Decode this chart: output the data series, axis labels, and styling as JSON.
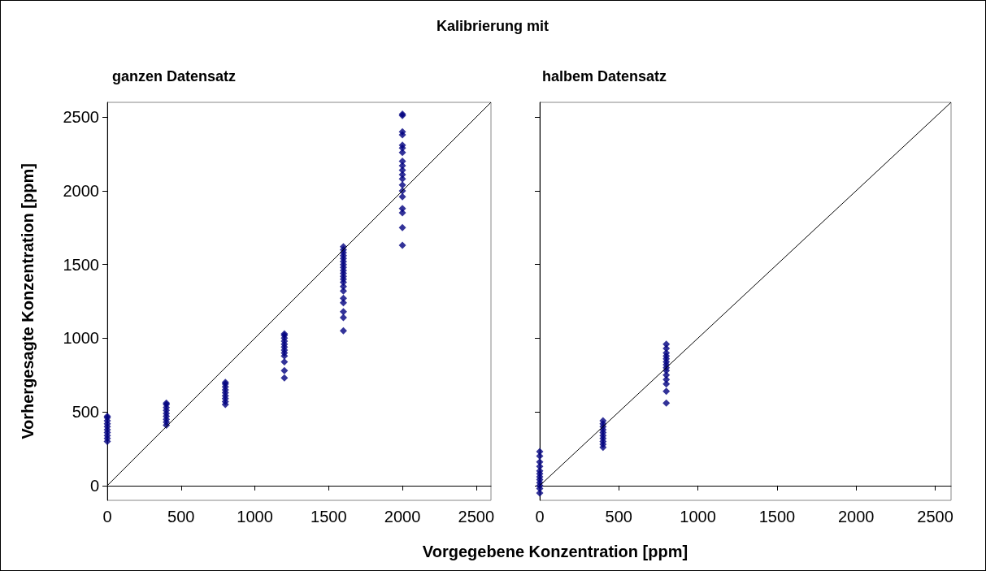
{
  "chart_data": [
    {
      "type": "scatter",
      "title": "Kalibrierung mit",
      "subtitle": "ganzen Datensatz",
      "xlabel": "Vorgegebene Konzentration [ppm]",
      "ylabel": "Vorhergesagte Konzentration [ppm]",
      "xlim": [
        0,
        2600
      ],
      "xticks": [
        0,
        500,
        1000,
        1500,
        2000,
        2500
      ],
      "ylim": [
        -100,
        2600
      ],
      "yticks": [
        0,
        500,
        1000,
        1500,
        2000,
        2500
      ],
      "series": [
        {
          "color": "#000080",
          "marker": "diamond",
          "x": [
            0,
            0,
            0,
            0,
            0,
            0,
            0,
            0,
            0,
            0,
            400,
            400,
            400,
            400,
            400,
            400,
            400,
            400,
            400,
            800,
            800,
            800,
            800,
            800,
            800,
            800,
            800,
            800,
            1200,
            1200,
            1200,
            1200,
            1200,
            1200,
            1200,
            1200,
            1200,
            1200,
            1200,
            1200,
            1600,
            1600,
            1600,
            1600,
            1600,
            1600,
            1600,
            1600,
            1600,
            1600,
            1600,
            1600,
            1600,
            1600,
            1600,
            1600,
            1600,
            1600,
            1600,
            1600,
            2000,
            2000,
            2000,
            2000,
            2000,
            2000,
            2000,
            2000,
            2000,
            2000,
            2000,
            2000,
            2000,
            2000,
            2000,
            2000,
            2000,
            2000,
            2000
          ],
          "values": [
            300,
            320,
            340,
            360,
            380,
            400,
            420,
            440,
            460,
            470,
            410,
            430,
            450,
            470,
            490,
            510,
            530,
            550,
            560,
            550,
            570,
            590,
            610,
            630,
            650,
            670,
            690,
            700,
            730,
            780,
            840,
            880,
            900,
            920,
            940,
            960,
            980,
            1000,
            1020,
            1030,
            1050,
            1140,
            1180,
            1240,
            1270,
            1320,
            1350,
            1380,
            1400,
            1420,
            1440,
            1460,
            1480,
            1500,
            1520,
            1540,
            1560,
            1580,
            1600,
            1620,
            1630,
            1750,
            1850,
            1880,
            1960,
            2000,
            2040,
            2080,
            2110,
            2140,
            2170,
            2200,
            2260,
            2290,
            2310,
            2380,
            2400,
            2510,
            2520
          ]
        },
        {
          "type": "line",
          "color": "#000000",
          "line_style": "solid",
          "marker": "none",
          "x": [
            0,
            2600
          ],
          "values": [
            0,
            2600
          ]
        }
      ]
    },
    {
      "type": "scatter",
      "subtitle": "halbem Datensatz",
      "tick_labels": "x",
      "xlim": [
        0,
        2600
      ],
      "xticks": [
        0,
        500,
        1000,
        1500,
        2000,
        2500
      ],
      "ylim": [
        -100,
        2600
      ],
      "yticks": [
        0,
        500,
        1000,
        1500,
        2000,
        2500
      ],
      "series": [
        {
          "color": "#000080",
          "marker": "diamond",
          "x": [
            0,
            0,
            0,
            0,
            0,
            0,
            0,
            0,
            0,
            0,
            0,
            0,
            400,
            400,
            400,
            400,
            400,
            400,
            400,
            400,
            400,
            400,
            800,
            800,
            800,
            800,
            800,
            800,
            800,
            800,
            800,
            800,
            800,
            800,
            800,
            800
          ],
          "values": [
            -50,
            -20,
            0,
            20,
            40,
            60,
            80,
            100,
            130,
            160,
            200,
            230,
            260,
            280,
            300,
            320,
            340,
            360,
            380,
            400,
            420,
            440,
            560,
            640,
            690,
            720,
            750,
            780,
            800,
            820,
            840,
            860,
            880,
            900,
            930,
            960
          ]
        },
        {
          "type": "line",
          "color": "#000000",
          "line_style": "solid",
          "marker": "none",
          "x": [
            0,
            2600
          ],
          "values": [
            0,
            2600
          ]
        }
      ]
    }
  ]
}
